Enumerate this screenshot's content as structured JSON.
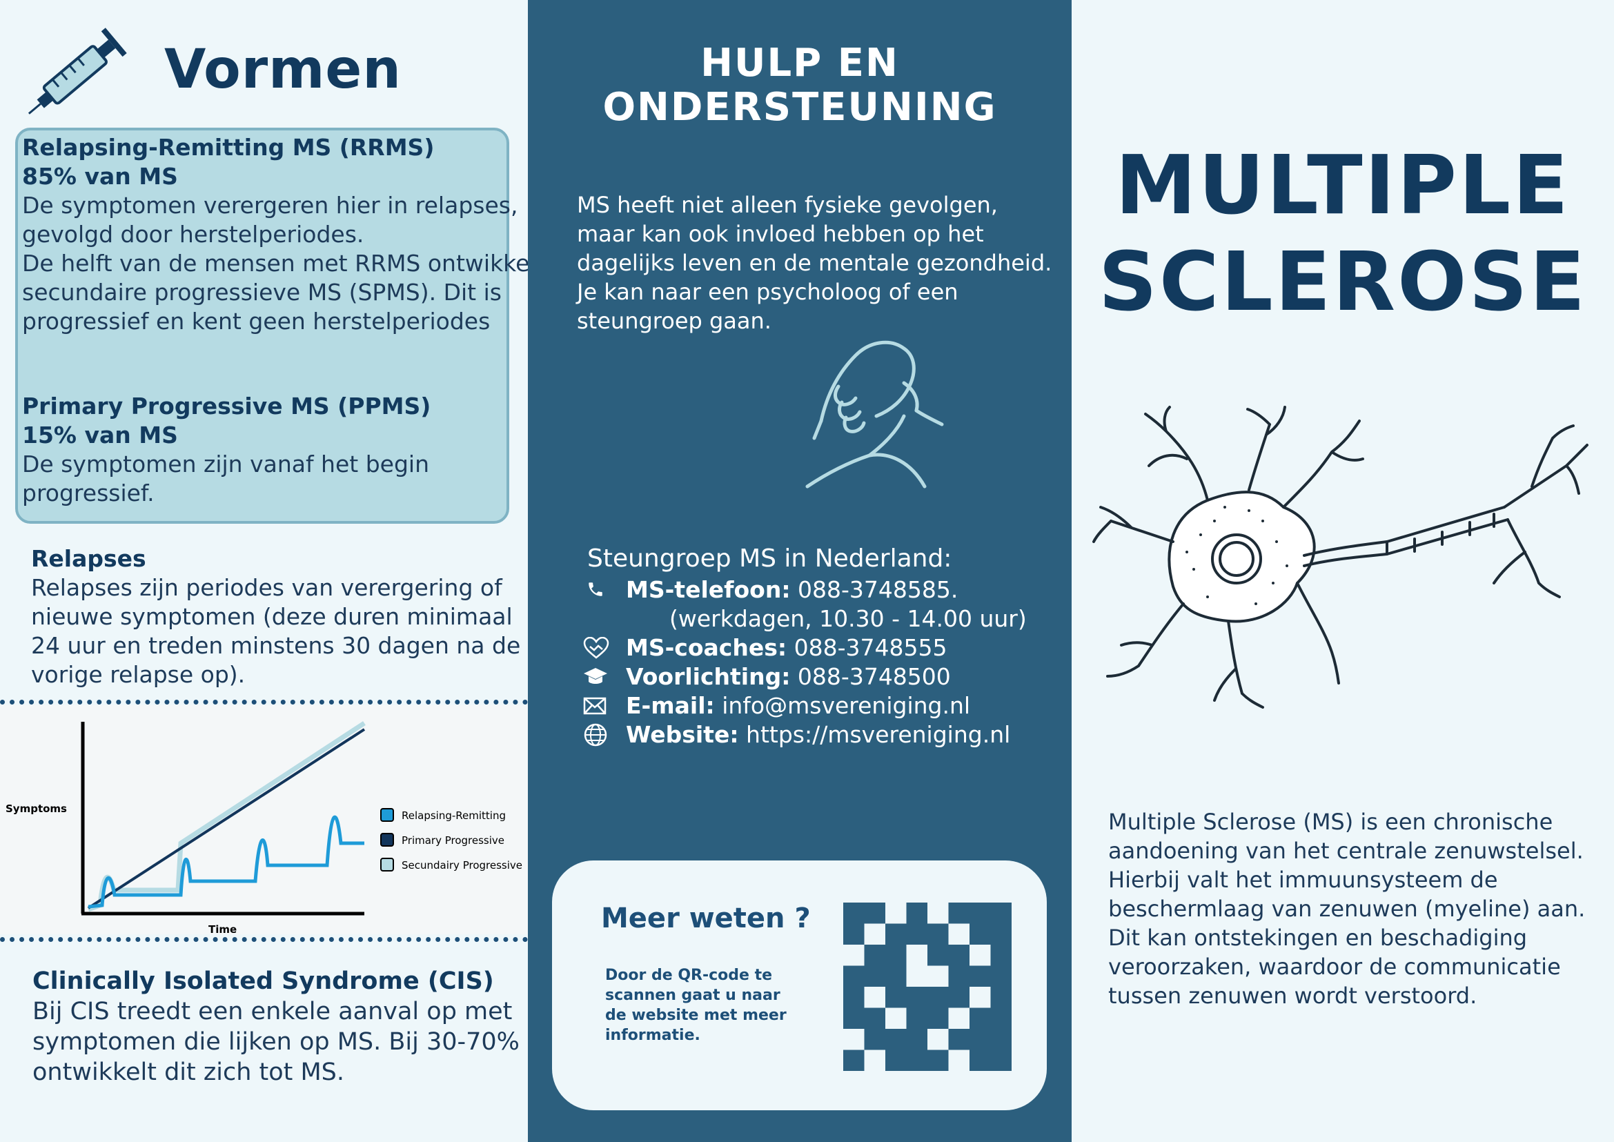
{
  "left": {
    "title": "Vormen",
    "rrms": {
      "heading": "Relapsing-Remitting MS (RRMS)",
      "pct": "85% van MS",
      "lines": [
        "De symptomen verergeren hier in relapses,",
        "gevolgd door herstelperiodes.",
        "De helft van de mensen met RRMS ontwikkelt",
        "secundaire progressieve MS (SPMS). Dit is",
        "progressief en kent geen herstelperiodes"
      ]
    },
    "ppms": {
      "heading": "Primary Progressive MS (PPMS)",
      "pct": "15% van MS",
      "lines": [
        "De symptomen zijn vanaf het begin",
        "progressief."
      ]
    },
    "relapses": {
      "heading": "Relapses",
      "lines": [
        "Relapses zijn periodes van verergering of",
        "nieuwe symptomen (deze duren minimaal",
        "24 uur en treden minstens 30 dagen na de",
        "vorige relapse op)."
      ]
    },
    "cis": {
      "heading": "Clinically Isolated Syndrome (CIS)",
      "lines": [
        "Bij CIS treedt een enkele aanval op met",
        "symptomen die lijken op MS. Bij 30-70%",
        "ontwikkelt dit zich tot MS."
      ]
    }
  },
  "chart_data": {
    "type": "line",
    "title": "",
    "xlabel": "Time",
    "ylabel": "Symptoms",
    "series": [
      {
        "name": "Relapsing-Remitting",
        "color": "#1e9bd8"
      },
      {
        "name": "Primary Progressive",
        "color": "#12355b"
      },
      {
        "name": "Secundairy Progressive",
        "color": "#b6dbe3"
      }
    ],
    "legend": "right"
  },
  "middle": {
    "title_line1": "HULP EN",
    "title_line2": "ONDERSTEUNING",
    "intro": [
      "MS heeft niet alleen fysieke gevolgen,",
      "maar kan ook invloed hebben op het",
      "dagelijks leven en de mentale gezondheid.",
      "Je kan naar een psycholoog of een",
      "steungroep gaan."
    ],
    "contacts_title": "Steungroep MS in Nederland:",
    "contacts": {
      "phone_label": "MS-telefoon:",
      "phone_value": " 088-3748585.",
      "phone_hours": "(werkdagen, 10.30 - 14.00 uur)",
      "coach_label": "MS-coaches:",
      "coach_value": " 088-3748555",
      "info_label": "Voorlichting:",
      "info_value": " 088-3748500",
      "email_label": "E-mail:",
      "email_value": " info@msvereniging.nl",
      "web_label": "Website:",
      "web_value": " https://msvereniging.nl"
    },
    "qr": {
      "title": "Meer weten ?",
      "lines": [
        "Door de QR-code te",
        "scannen gaat u naar",
        "de website met meer",
        "informatie."
      ]
    }
  },
  "right": {
    "title_line1": "MULTIPLE",
    "title_line2": "SCLEROSE",
    "desc": [
      "Multiple Sclerose (MS) is een chronische",
      "aandoening van het centrale zenuwstelsel.",
      "Hierbij valt het immuunsysteem de",
      "beschermlaag van zenuwen (myeline) aan.",
      "Dit kan ontstekingen en beschadiging",
      "veroorzaken, waardoor de communicatie",
      "tussen zenuwen wordt verstoord."
    ]
  }
}
